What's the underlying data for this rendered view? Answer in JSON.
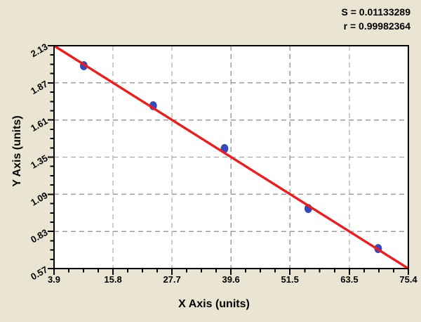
{
  "stats_panel": {
    "line1": "S = 0.01133289",
    "line2": "r = 0.99982364"
  },
  "chart_data": {
    "type": "scatter",
    "title": "",
    "xlabel": "X Axis (units)",
    "ylabel": "Y Axis (units)",
    "xlim": [
      3.9,
      75.4
    ],
    "ylim": [
      0.57,
      2.13
    ],
    "x_tick_labels": [
      "3.9",
      "15.8",
      "27.7",
      "39.6",
      "51.5",
      "63.5",
      "75.4"
    ],
    "x_tick_values": [
      3.9,
      15.8,
      27.7,
      39.6,
      51.5,
      63.5,
      75.4
    ],
    "y_tick_labels": [
      "2.13",
      "1.87",
      "1.61",
      "1.35",
      "1.09",
      "0.83",
      "0.57"
    ],
    "y_tick_values": [
      2.13,
      1.87,
      1.61,
      1.35,
      1.09,
      0.83,
      0.57
    ],
    "minor_ticks_between_majors": 3,
    "grid": true,
    "grid_style": "dashed, interior major lines only",
    "legend_position": "none",
    "series": [
      {
        "name": "standard-points",
        "type": "scatter",
        "color": "#3747BC",
        "x": [
          9.9,
          23.9,
          38.3,
          55.2,
          69.3
        ],
        "y": [
          1.99,
          1.71,
          1.41,
          0.99,
          0.71
        ]
      },
      {
        "name": "regression-line",
        "type": "line",
        "color": "#ED1C1D",
        "x": [
          3.9,
          75.4
        ],
        "y": [
          2.13,
          0.57
        ]
      }
    ],
    "annotations": [
      {
        "id": "s_stat",
        "text": "S = 0.01133289"
      },
      {
        "id": "r_stat",
        "text": "r = 0.99982364"
      }
    ],
    "colors": {
      "canvas_bg": "#E9E5D2",
      "plot_bg": "#FFFFFF",
      "grid": "#9C9C9C",
      "axis": "#000000",
      "text": "#000000"
    }
  }
}
